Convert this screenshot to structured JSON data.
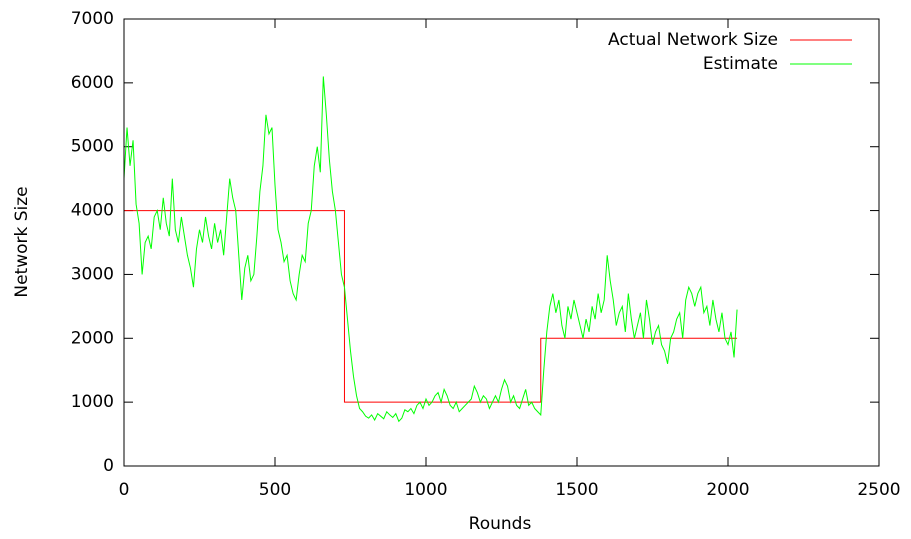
{
  "chart_data": {
    "type": "line",
    "xlabel": "Rounds",
    "ylabel": "Network Size",
    "xlim": [
      0,
      2500
    ],
    "xticks": [
      0,
      500,
      1000,
      1500,
      2000,
      2500
    ],
    "ylim": [
      0,
      7000
    ],
    "yticks": [
      0,
      1000,
      2000,
      3000,
      4000,
      5000,
      6000,
      7000
    ],
    "grid": false,
    "legend": "top-right",
    "series": [
      {
        "name": "Actual Network Size",
        "color": "#ff0000",
        "x": [
          0,
          730,
          730,
          1380,
          1380,
          2030
        ],
        "values": [
          4000,
          4000,
          1000,
          1000,
          2000,
          2000
        ]
      },
      {
        "name": "Estimate",
        "color": "#00ff00",
        "x": [
          0,
          10,
          20,
          30,
          40,
          50,
          60,
          70,
          80,
          90,
          100,
          110,
          120,
          130,
          140,
          150,
          160,
          170,
          180,
          190,
          200,
          210,
          220,
          230,
          240,
          250,
          260,
          270,
          280,
          290,
          300,
          310,
          320,
          330,
          340,
          350,
          360,
          370,
          380,
          390,
          400,
          410,
          420,
          430,
          440,
          450,
          460,
          470,
          480,
          490,
          500,
          510,
          520,
          530,
          540,
          550,
          560,
          570,
          580,
          590,
          600,
          610,
          620,
          630,
          640,
          650,
          660,
          670,
          680,
          690,
          700,
          710,
          720,
          730,
          740,
          750,
          760,
          770,
          780,
          790,
          800,
          810,
          820,
          830,
          840,
          850,
          860,
          870,
          880,
          890,
          900,
          910,
          920,
          930,
          940,
          950,
          960,
          970,
          980,
          990,
          1000,
          1010,
          1020,
          1030,
          1040,
          1050,
          1060,
          1070,
          1080,
          1090,
          1100,
          1110,
          1120,
          1130,
          1140,
          1150,
          1160,
          1170,
          1180,
          1190,
          1200,
          1210,
          1220,
          1230,
          1240,
          1250,
          1260,
          1270,
          1280,
          1290,
          1300,
          1310,
          1320,
          1330,
          1340,
          1350,
          1360,
          1370,
          1380,
          1390,
          1400,
          1410,
          1420,
          1430,
          1440,
          1450,
          1460,
          1470,
          1480,
          1490,
          1500,
          1510,
          1520,
          1530,
          1540,
          1550,
          1560,
          1570,
          1580,
          1590,
          1600,
          1610,
          1620,
          1630,
          1640,
          1650,
          1660,
          1670,
          1680,
          1690,
          1700,
          1710,
          1720,
          1730,
          1740,
          1750,
          1760,
          1770,
          1780,
          1790,
          1800,
          1810,
          1820,
          1830,
          1840,
          1850,
          1860,
          1870,
          1880,
          1890,
          1900,
          1910,
          1920,
          1930,
          1940,
          1950,
          1960,
          1970,
          1980,
          1990,
          2000,
          2010,
          2020,
          2030
        ],
        "values": [
          4500,
          5300,
          4700,
          5100,
          4100,
          3800,
          3000,
          3500,
          3600,
          3400,
          3900,
          4000,
          3700,
          4200,
          3800,
          3600,
          4500,
          3700,
          3500,
          3900,
          3600,
          3300,
          3100,
          2800,
          3400,
          3700,
          3500,
          3900,
          3600,
          3400,
          3800,
          3500,
          3700,
          3300,
          3900,
          4500,
          4200,
          4000,
          3300,
          2600,
          3100,
          3300,
          2900,
          3000,
          3600,
          4300,
          4700,
          5500,
          5200,
          5300,
          4400,
          3700,
          3500,
          3200,
          3300,
          2900,
          2700,
          2600,
          3000,
          3300,
          3200,
          3800,
          4000,
          4700,
          5000,
          4600,
          6100,
          5500,
          4800,
          4300,
          4000,
          3500,
          3000,
          2800,
          2300,
          1800,
          1400,
          1100,
          900,
          850,
          780,
          750,
          800,
          720,
          820,
          780,
          740,
          850,
          800,
          760,
          820,
          700,
          750,
          880,
          850,
          900,
          820,
          950,
          1000,
          900,
          1050,
          950,
          1000,
          1100,
          1150,
          1000,
          1200,
          1100,
          950,
          900,
          1000,
          850,
          900,
          950,
          1000,
          1050,
          1250,
          1150,
          1000,
          1100,
          1050,
          900,
          1000,
          1100,
          1000,
          1200,
          1350,
          1250,
          1000,
          1100,
          950,
          900,
          1050,
          1200,
          950,
          1000,
          900,
          850,
          800,
          1500,
          2100,
          2500,
          2700,
          2400,
          2600,
          2200,
          2000,
          2500,
          2300,
          2600,
          2400,
          2200,
          2000,
          2300,
          2100,
          2500,
          2300,
          2700,
          2400,
          2600,
          3300,
          2900,
          2600,
          2200,
          2400,
          2500,
          2100,
          2700,
          2300,
          2000,
          2200,
          2400,
          2000,
          2600,
          2300,
          1900,
          2100,
          2200,
          1900,
          1800,
          1600,
          2000,
          2100,
          2300,
          2400,
          2000,
          2600,
          2800,
          2700,
          2500,
          2700,
          2800,
          2400,
          2500,
          2200,
          2600,
          2300,
          2100,
          2400,
          2000,
          1900,
          2100,
          1700,
          2450
        ]
      }
    ]
  }
}
